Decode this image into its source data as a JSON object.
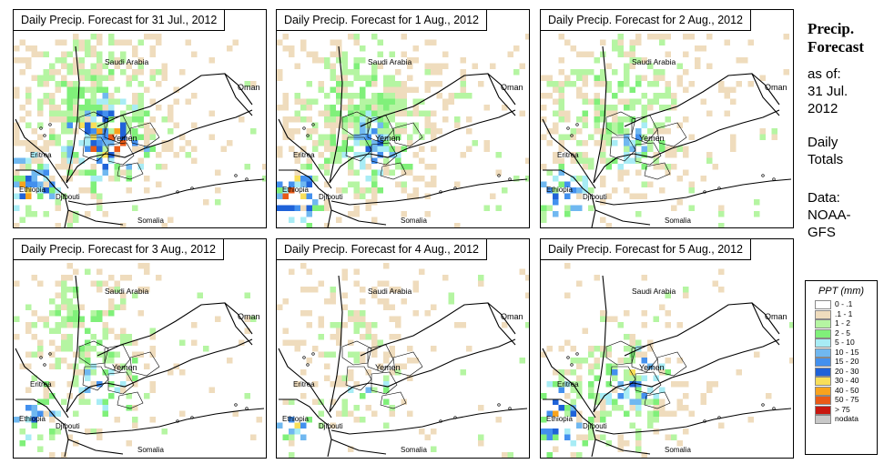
{
  "panels": [
    {
      "title": "Daily Precip. Forecast for  31 Jul., 2012",
      "intensity": 1.0
    },
    {
      "title": "Daily Precip. Forecast for  1 Aug., 2012",
      "intensity": 0.9
    },
    {
      "title": "Daily Precip. Forecast for  2 Aug., 2012",
      "intensity": 0.7
    },
    {
      "title": "Daily Precip. Forecast for  3 Aug., 2012",
      "intensity": 0.6
    },
    {
      "title": "Daily Precip. Forecast for  4 Aug., 2012",
      "intensity": 0.45
    },
    {
      "title": "Daily Precip. Forecast for  5 Aug., 2012",
      "intensity": 0.6
    }
  ],
  "map_labels": {
    "saudi": "Saudi Arabia",
    "oman": "Oman",
    "yemen": "Yemen",
    "eritrea": "Eritrea",
    "ethiopia": "Ethiopia",
    "djibouti": "Djibouti",
    "somalia": "Somalia"
  },
  "side": {
    "title_line1": "Precip.",
    "title_line2": "Forecast",
    "asof": "as of:",
    "date_line1": "31 Jul.",
    "date_line2": "2012",
    "daily_line1": "Daily",
    "daily_line2": "Totals",
    "data_line1": "Data:",
    "data_line2": "NOAA-",
    "data_line3": "GFS"
  },
  "legend": {
    "title": "PPT (mm)",
    "items": [
      {
        "label": "0 - .1",
        "color": "#ffffff"
      },
      {
        "label": ".1 - 1",
        "color": "#efdcbd"
      },
      {
        "label": "1 - 2",
        "color": "#b5f5a2"
      },
      {
        "label": "2 - 5",
        "color": "#80f07a"
      },
      {
        "label": "5 - 10",
        "color": "#a8ecf5"
      },
      {
        "label": "10 - 15",
        "color": "#70b8f0"
      },
      {
        "label": "15 - 20",
        "color": "#4390ee"
      },
      {
        "label": "20 - 30",
        "color": "#1f62d8"
      },
      {
        "label": "30 - 40",
        "color": "#f8df5a"
      },
      {
        "label": "40 - 50",
        "color": "#f8a31e"
      },
      {
        "label": "50 - 75",
        "color": "#ea5a16"
      },
      {
        "label": "> 75",
        "color": "#c8170f"
      },
      {
        "label": "nodata",
        "color": "#c8c8c8"
      }
    ]
  }
}
